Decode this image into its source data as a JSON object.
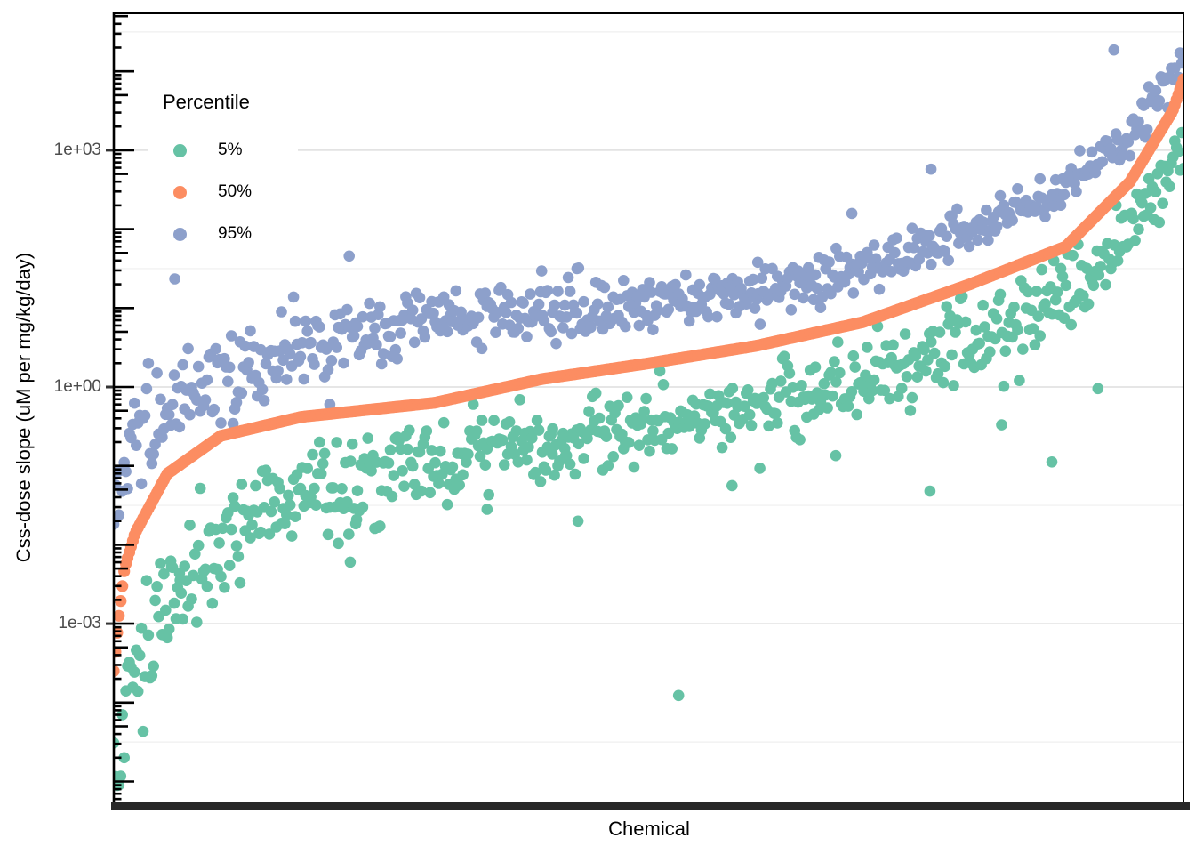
{
  "chart_data": {
    "type": "scatter",
    "title": "",
    "xlabel": "Chemical",
    "ylabel": "Css-dose slope (uM per mg/kg/day)",
    "x_axis_note": "individual chemicals, unlabeled, sorted left-to-right by their 50th-percentile Css-dose slope",
    "n_chemicals": 620,
    "y_scale": "log10",
    "ylim_log10": [
      -5.265,
      4.735
    ],
    "y_breaks": [
      1000,
      1,
      0.001
    ],
    "y_break_labels": [
      "1e+03",
      "1e+00",
      "1e-03"
    ],
    "y_minor_breaks_log10": [
      4.5,
      1.5,
      -1.5,
      -4.5
    ],
    "legend_title": "Percentile",
    "legend_position": "top-left-inside",
    "grid": true,
    "seed": 1337,
    "series": [
      {
        "name": "5%",
        "color": "#66C2A5",
        "trend_t": [
          0,
          0.005,
          0.01,
          0.02,
          0.04,
          0.07,
          0.1,
          0.175,
          0.25,
          0.35,
          0.45,
          0.55,
          0.65,
          0.75,
          0.85,
          0.92,
          0.96,
          0.99,
          1
        ],
        "trend_log10y": [
          -4.85,
          -4.5,
          -4.2,
          -3.5,
          -2.9,
          -2.35,
          -1.95,
          -1.3,
          -1.1,
          -0.85,
          -0.62,
          -0.38,
          -0.08,
          0.28,
          0.85,
          1.5,
          2.2,
          2.9,
          3.2
        ],
        "noise_sd_t": [
          0,
          0.05,
          0.2,
          0.5,
          0.8,
          1
        ],
        "noise_sd": [
          0.5,
          0.42,
          0.3,
          0.22,
          0.25,
          0.3
        ],
        "outliers_t_log10y": [
          [
            0.054,
            -2.28
          ],
          [
            0.062,
            -2.45
          ],
          [
            0.221,
            -2.22
          ],
          [
            0.227,
            -1.68
          ],
          [
            0.349,
            -1.55
          ],
          [
            0.41,
            -0.85
          ],
          [
            0.422,
            -0.88
          ],
          [
            0.434,
            -1.7
          ],
          [
            0.528,
            -3.91
          ],
          [
            0.578,
            -1.25
          ],
          [
            0.604,
            -1.03
          ],
          [
            0.675,
            -0.87
          ],
          [
            0.763,
            -1.32
          ],
          [
            0.83,
            -0.48
          ],
          [
            0.877,
            -0.95
          ],
          [
            0.92,
            -0.02
          ]
        ]
      },
      {
        "name": "50%",
        "color": "#FC8D62",
        "trend_t": [
          0,
          0.004,
          0.01,
          0.02,
          0.05,
          0.1,
          0.175,
          0.3,
          0.4,
          0.5,
          0.6,
          0.7,
          0.8,
          0.89,
          0.95,
          0.99,
          1
        ],
        "trend_log10y": [
          -3.6,
          -3.0,
          -2.3,
          -1.85,
          -1.1,
          -0.62,
          -0.38,
          -0.2,
          0.1,
          0.3,
          0.52,
          0.82,
          1.3,
          1.78,
          2.6,
          3.5,
          3.9
        ],
        "noise_sd_t": [
          0,
          1
        ],
        "noise_sd": [
          0,
          0
        ],
        "outliers_t_log10y": []
      },
      {
        "name": "95%",
        "color": "#8DA0CB",
        "trend_t": [
          0,
          0.005,
          0.02,
          0.05,
          0.1,
          0.175,
          0.3,
          0.45,
          0.6,
          0.7,
          0.8,
          0.89,
          0.95,
          0.99,
          1
        ],
        "trend_log10y": [
          -1.4,
          -1.15,
          -0.7,
          -0.25,
          0.12,
          0.45,
          0.85,
          1.0,
          1.17,
          1.5,
          1.95,
          2.5,
          3.15,
          3.95,
          4.15
        ],
        "noise_sd_t": [
          0,
          0.05,
          0.2,
          0.5,
          0.8,
          1
        ],
        "noise_sd": [
          0.32,
          0.26,
          0.21,
          0.18,
          0.16,
          0.13
        ],
        "outliers_t_log10y": [
          [
            0.057,
            1.37
          ],
          [
            0.22,
            1.66
          ],
          [
            0.4,
            1.47
          ],
          [
            0.433,
            1.5
          ],
          [
            0.602,
            1.58
          ],
          [
            0.69,
            2.2
          ],
          [
            0.764,
            2.76
          ],
          [
            0.935,
            4.27
          ]
        ]
      }
    ],
    "style": {
      "point_radius_px": 6.3,
      "median_point_radius_px": 6.6,
      "major_grid_color": "#E3E3E3",
      "minor_grid_color": "#EFEFEF",
      "panel_border_color": "#000000",
      "x_tick_bar_color": "#272727",
      "axis_text_color": "#4d4d4d"
    }
  }
}
